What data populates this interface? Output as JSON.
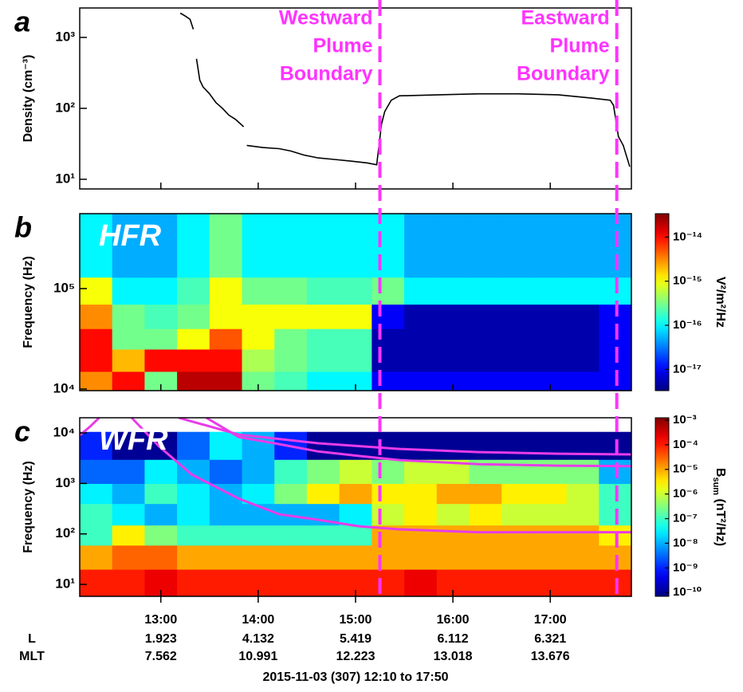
{
  "chart_data": [
    {
      "type": "line",
      "panel_label": "a",
      "ylabel": "Density (cm⁻³)",
      "log_y": true,
      "xlim": [
        "12:10",
        "17:50"
      ],
      "ylim": [
        7.3,
        2600
      ],
      "yticks": [
        {
          "value": 10,
          "label": "10¹"
        },
        {
          "value": 100,
          "label": "10²"
        },
        {
          "value": 1000,
          "label": "10³"
        }
      ],
      "x": [
        "13:12",
        "13:15",
        "13:18",
        "13:20",
        "13:21",
        "13:22",
        "13:24",
        "13:26",
        "13:30",
        "13:34",
        "13:38",
        "13:42",
        "13:46",
        "13:51",
        "13:52",
        "13:53",
        "14:03",
        "14:13",
        "14:20",
        "14:28",
        "14:37",
        "14:47",
        "14:57",
        "15:07",
        "15:13",
        "15:16",
        "15:18",
        "15:22",
        "15:27",
        "15:51",
        "16:16",
        "16:40",
        "17:05",
        "17:25",
        "17:37",
        "17:39",
        "17:42",
        "17:45",
        "17:49"
      ],
      "series": [
        {
          "color": "#000000",
          "values": [
            2200,
            2000,
            1800,
            1300,
            null,
            500,
            250,
            200,
            160,
            120,
            100,
            80,
            70,
            55,
            null,
            30,
            28,
            27,
            25,
            22,
            20,
            19,
            18,
            17,
            16,
            60,
            90,
            130,
            150,
            155,
            160,
            160,
            155,
            140,
            130,
            110,
            40,
            30,
            15
          ]
        }
      ],
      "annotations": {
        "color": "#ff33ff",
        "items": [
          {
            "x": "15:15",
            "lines": [
              "Westward",
              "Plume",
              "Boundary"
            ]
          },
          {
            "x": "17:41",
            "lines": [
              "Eastward",
              "Plume",
              "Boundary"
            ]
          }
        ]
      }
    },
    {
      "type": "heatmap",
      "panel_label": "b",
      "title": "HFR",
      "ylabel": "Frequency (Hz)",
      "log_y": true,
      "xlim": [
        "12:10",
        "17:50"
      ],
      "ylim": [
        9640,
        557000
      ],
      "yticks": [
        {
          "value": 10000,
          "label": "10⁴"
        },
        {
          "value": 100000,
          "label": "10⁵"
        }
      ],
      "x_bins": [
        "12:10",
        "12:30",
        "12:50",
        "13:10",
        "13:30",
        "13:50",
        "14:10",
        "14:30",
        "14:50",
        "15:10",
        "15:30",
        "15:50",
        "16:10",
        "16:30",
        "16:50",
        "17:10",
        "17:30",
        "17:50"
      ],
      "y_bins": [
        9640,
        15000,
        25000,
        40000,
        70000,
        130000,
        557000
      ],
      "z": [
        [
          3e-15,
          1e-14,
          3e-16,
          2e-14,
          2e-14,
          3e-16,
          2e-16,
          1e-16,
          1e-16,
          1e-17,
          1e-17,
          1e-17,
          1e-17,
          1e-17,
          1e-17,
          1e-17,
          1e-17
        ],
        [
          1e-14,
          2e-15,
          1e-14,
          1e-14,
          1e-14,
          5e-16,
          3e-16,
          2e-16,
          2e-16,
          5e-18,
          5e-18,
          5e-18,
          5e-18,
          5e-18,
          5e-18,
          5e-18,
          1e-17
        ],
        [
          1e-14,
          3e-16,
          3e-16,
          1e-15,
          5e-15,
          1e-15,
          3e-16,
          2e-16,
          2e-16,
          5e-18,
          5e-18,
          5e-18,
          5e-18,
          5e-18,
          5e-18,
          5e-18,
          1e-17
        ],
        [
          3e-15,
          3e-16,
          2e-16,
          3e-16,
          1e-15,
          1e-15,
          1e-15,
          1e-15,
          1e-15,
          1e-17,
          5e-18,
          5e-18,
          5e-18,
          5e-18,
          5e-18,
          5e-18,
          1e-17
        ],
        [
          1e-15,
          1e-16,
          1e-16,
          2e-16,
          1e-15,
          3e-16,
          3e-16,
          2e-16,
          2e-16,
          3e-16,
          1e-16,
          1e-16,
          1e-16,
          1e-16,
          1e-16,
          1e-16,
          1e-16
        ],
        [
          1e-16,
          5e-17,
          5e-17,
          1e-16,
          3e-16,
          1e-16,
          1e-16,
          1e-16,
          1e-16,
          1e-16,
          5e-17,
          5e-17,
          5e-17,
          5e-17,
          5e-17,
          5e-17,
          5e-17
        ]
      ],
      "colormap": "jet",
      "clim": [
        3.3e-18,
        3.4e-14
      ],
      "cticks": [
        {
          "value": 1e-14,
          "label": "10⁻¹⁴"
        },
        {
          "value": 1e-15,
          "label": "10⁻¹⁵"
        },
        {
          "value": 1e-16,
          "label": "10⁻¹⁶"
        },
        {
          "value": 1e-17,
          "label": "10⁻¹⁷"
        }
      ],
      "clabel": "V²/m²/Hz"
    },
    {
      "type": "heatmap",
      "panel_label": "c",
      "title": "WFR",
      "ylabel": "Frequency (Hz)",
      "log_y": true,
      "xlim": [
        "12:10",
        "17:50"
      ],
      "ylim": [
        5.8,
        20000
      ],
      "yticks": [
        {
          "value": 10,
          "label": "10¹"
        },
        {
          "value": 100,
          "label": "10²"
        },
        {
          "value": 1000,
          "label": "10³"
        },
        {
          "value": 10000,
          "label": "10⁴"
        }
      ],
      "xticks": [
        "13:00",
        "14:00",
        "15:00",
        "16:00",
        "17:00"
      ],
      "xlabel": "2015-11-03 (307) 12:10 to 17:50",
      "ephemeris": [
        {
          "label": "L",
          "values": [
            1.923,
            4.132,
            5.419,
            6.112,
            6.321
          ]
        },
        {
          "label": "MLT",
          "values": [
            7.562,
            10.991,
            12.223,
            13.018,
            13.676
          ]
        }
      ],
      "x_bins": [
        "12:10",
        "12:30",
        "12:50",
        "13:10",
        "13:30",
        "13:50",
        "14:10",
        "14:30",
        "14:50",
        "15:10",
        "15:30",
        "15:50",
        "16:10",
        "16:30",
        "16:50",
        "17:10",
        "17:30",
        "17:50"
      ],
      "y_bins": [
        5.8,
        20,
        60,
        150,
        400,
        1000,
        3000,
        10500
      ],
      "z": [
        [
          0.0001,
          0.0001,
          0.0002,
          0.0001,
          0.0001,
          0.0001,
          0.0001,
          0.0001,
          0.0001,
          0.0001,
          0.0002,
          0.0001,
          0.0001,
          0.0001,
          0.0001,
          0.0001,
          0.0001
        ],
        [
          1e-05,
          3e-05,
          3e-05,
          1e-05,
          1e-05,
          1e-05,
          1e-05,
          1e-05,
          1e-05,
          1e-05,
          1e-05,
          1e-05,
          1e-05,
          1e-05,
          1e-05,
          1e-05,
          1e-05
        ],
        [
          1e-07,
          3e-06,
          3e-07,
          1e-07,
          1e-07,
          1e-07,
          1e-07,
          1e-07,
          1e-07,
          1e-05,
          1e-05,
          1e-05,
          1e-05,
          1e-05,
          1e-05,
          1e-05,
          3e-06
        ],
        [
          1e-07,
          3e-08,
          1e-08,
          3e-08,
          1e-08,
          1e-08,
          1e-08,
          1e-08,
          3e-08,
          1e-06,
          3e-06,
          1e-06,
          3e-06,
          1e-06,
          1e-06,
          1e-06,
          1e-07
        ],
        [
          3e-08,
          1e-08,
          1e-07,
          3e-08,
          1e-08,
          3e-08,
          3e-07,
          3e-06,
          1e-05,
          3e-06,
          3e-06,
          1e-05,
          1e-05,
          3e-06,
          3e-06,
          1e-06,
          1e-07
        ],
        [
          3e-09,
          3e-09,
          3e-08,
          1e-08,
          3e-09,
          1e-08,
          1e-07,
          3e-07,
          1e-06,
          3e-07,
          1e-06,
          1e-06,
          3e-07,
          3e-07,
          3e-07,
          3e-07,
          1e-08
        ],
        [
          1e-09,
          1e-10,
          1e-10,
          3e-09,
          3e-08,
          1e-08,
          1e-09,
          1e-10,
          1e-10,
          1e-10,
          1e-10,
          1e-10,
          1e-10,
          1e-10,
          1e-10,
          1e-10,
          1e-10
        ]
      ],
      "lines": [
        {
          "color": "#e83ce8",
          "x": [
            "12:10",
            "12:16",
            "12:22"
          ],
          "values": [
            9000,
            13000,
            20000
          ]
        },
        {
          "color": "#e83ce8",
          "x": [
            "12:42",
            "12:59",
            "13:19",
            "13:48",
            "14:13",
            "14:37",
            "15:02",
            "15:27",
            "16:16",
            "17:50"
          ],
          "values": [
            20000,
            5400,
            1500,
            500,
            245,
            190,
            142,
            123,
            108,
            108
          ]
        },
        {
          "color": "#e83ce8",
          "x": [
            "13:28",
            "13:48",
            "14:13",
            "14:37",
            "15:02",
            "15:27",
            "16:16",
            "17:05",
            "17:50"
          ],
          "values": [
            20000,
            8300,
            6000,
            4300,
            3500,
            2900,
            2400,
            2250,
            2200
          ]
        },
        {
          "color": "#e83ce8",
          "x": [
            "13:11",
            "13:48",
            "14:37",
            "15:27",
            "16:16",
            "17:05",
            "17:50"
          ],
          "values": [
            20000,
            9300,
            6250,
            4830,
            4170,
            3880,
            3750
          ]
        }
      ],
      "colormap": "jet",
      "clim": [
        7e-11,
        0.00125
      ],
      "cticks": [
        {
          "value": 0.001,
          "label": "10⁻³"
        },
        {
          "value": 0.0001,
          "label": "10⁻⁴"
        },
        {
          "value": 1e-05,
          "label": "10⁻⁵"
        },
        {
          "value": 1e-06,
          "label": "10⁻⁶"
        },
        {
          "value": 1e-07,
          "label": "10⁻⁷"
        },
        {
          "value": 1e-08,
          "label": "10⁻⁸"
        },
        {
          "value": 1e-09,
          "label": "10⁻⁹"
        },
        {
          "value": 1e-10,
          "label": "10⁻¹⁰"
        }
      ],
      "clabel_parts": [
        "B",
        "sum",
        " (nT²/Hz)"
      ]
    }
  ]
}
